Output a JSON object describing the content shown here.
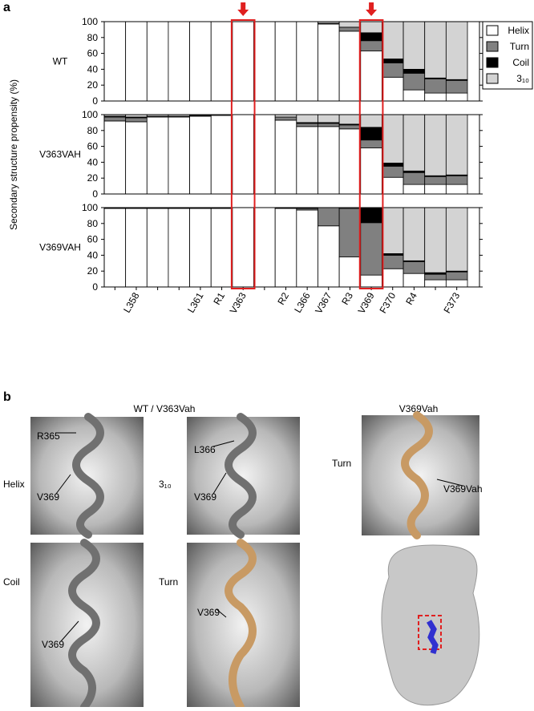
{
  "figure": {
    "panel_a_label": "a",
    "panel_b_label": "b",
    "y_label": "Secondary structure propensity (%)",
    "highlight_color": "#e02020",
    "highlight_index": [
      6,
      12
    ],
    "panel_b": {
      "group_left": "WT / V363Vah",
      "group_right": "V369Vah",
      "state_labels": [
        "Helix",
        "3₁₀",
        "Coil",
        "Turn",
        "Turn"
      ],
      "residue_labels": [
        "R365",
        "V369",
        "L366",
        "V369",
        "V369",
        "V369",
        "V369Vah"
      ]
    }
  },
  "chart_data": [
    {
      "type": "stacked-bar",
      "title": "WT",
      "ylim": [
        0,
        100
      ],
      "yticks": [
        0,
        20,
        40,
        60,
        80,
        100
      ],
      "series": [
        {
          "name": "Helix",
          "color": "#ffffff",
          "values": [
            100,
            100,
            100,
            100,
            100,
            100,
            100,
            100,
            100,
            100,
            97,
            88,
            63,
            30,
            14,
            10,
            10
          ]
        },
        {
          "name": "Turn",
          "color": "#808080",
          "values": [
            0,
            0,
            0,
            0,
            0,
            0,
            0,
            0,
            0,
            0,
            1,
            5,
            13,
            18,
            21,
            18,
            16
          ]
        },
        {
          "name": "Coil",
          "color": "#000000",
          "values": [
            0,
            0,
            0,
            0,
            0,
            0,
            0,
            0,
            0,
            0,
            0,
            0,
            10,
            5,
            5,
            1,
            1
          ]
        },
        {
          "name": "3₁₀",
          "color": "#d3d3d3",
          "values": [
            0,
            0,
            0,
            0,
            0,
            0,
            0,
            0,
            0,
            0,
            2,
            7,
            14,
            47,
            60,
            71,
            73
          ]
        }
      ]
    },
    {
      "type": "stacked-bar",
      "title": "V363VAH",
      "ylim": [
        0,
        100
      ],
      "yticks": [
        0,
        20,
        40,
        60,
        80,
        100
      ],
      "series": [
        {
          "values": [
            92,
            91,
            97,
            97,
            98,
            99,
            100,
            100,
            93,
            85,
            85,
            82,
            58,
            21,
            12,
            12,
            12
          ]
        },
        {
          "values": [
            5,
            5,
            1,
            1,
            1,
            0,
            0,
            0,
            4,
            4,
            4,
            5,
            10,
            14,
            15,
            10,
            11
          ]
        },
        {
          "values": [
            1,
            1,
            0,
            0,
            0,
            0,
            0,
            0,
            0,
            1,
            1,
            1,
            16,
            4,
            2,
            1,
            1
          ]
        },
        {
          "values": [
            2,
            3,
            2,
            2,
            1,
            1,
            0,
            0,
            3,
            10,
            10,
            12,
            16,
            61,
            71,
            77,
            76
          ]
        }
      ]
    },
    {
      "type": "stacked-bar",
      "title": "V369VAH",
      "ylim": [
        0,
        100
      ],
      "yticks": [
        0,
        20,
        40,
        60,
        80,
        100
      ],
      "categories": [
        null,
        "L358",
        null,
        null,
        "L361",
        "R1",
        "V363",
        null,
        "R2",
        "L366",
        "V367",
        "R3",
        "V369",
        "F370",
        "R4",
        null,
        "F373"
      ],
      "series": [
        {
          "values": [
            99,
            99,
            99,
            99,
            99,
            99,
            100,
            100,
            99,
            97,
            77,
            38,
            15,
            23,
            17,
            9,
            9
          ]
        },
        {
          "values": [
            0,
            0,
            0,
            0,
            0,
            0,
            0,
            0,
            0,
            2,
            23,
            61,
            66,
            17,
            15,
            7,
            10
          ]
        },
        {
          "values": [
            1,
            1,
            1,
            1,
            1,
            1,
            0,
            0,
            1,
            1,
            0,
            0,
            19,
            2,
            1,
            2,
            1
          ]
        },
        {
          "values": [
            0,
            0,
            0,
            0,
            0,
            0,
            0,
            0,
            0,
            0,
            0,
            1,
            0,
            58,
            67,
            82,
            80
          ]
        }
      ]
    }
  ]
}
